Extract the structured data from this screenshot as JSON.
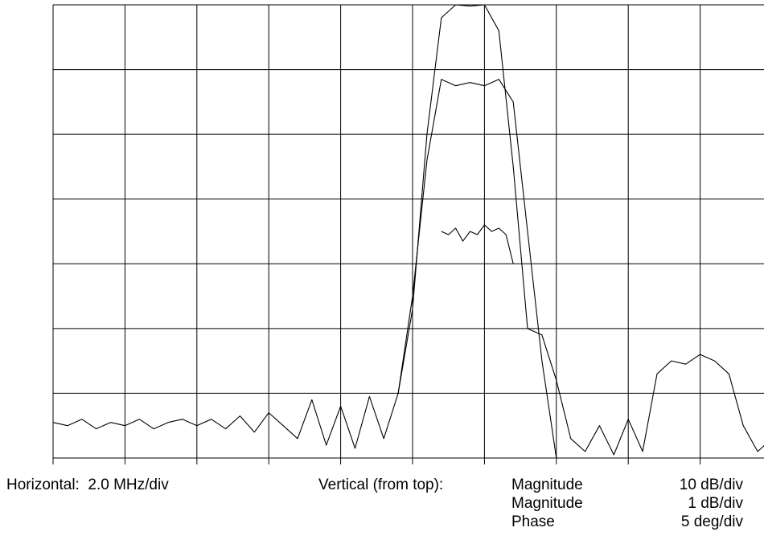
{
  "chart_data": {
    "type": "line",
    "grid": true,
    "x_divisions": 10,
    "y_divisions": 7,
    "x_scale": {
      "label": "Horizontal:",
      "value": "2.0 MHz/div"
    },
    "y_scales": {
      "label": "Vertical (from top):",
      "items": [
        {
          "name": "Magnitude",
          "scale": "10 dB/div"
        },
        {
          "name": "Magnitude",
          "scale": "1 dB/div"
        },
        {
          "name": "Phase",
          "scale": "5 deg/div"
        }
      ]
    },
    "series": [
      {
        "x": [
          0.0,
          0.2,
          0.4,
          0.6,
          0.8,
          1.0,
          1.2,
          1.4,
          1.6,
          1.8,
          2.0,
          2.2,
          2.4,
          2.6,
          2.8,
          3.0,
          3.2,
          3.4,
          3.6,
          3.8,
          4.0,
          4.2,
          4.4,
          4.6,
          4.8,
          5.0,
          5.2,
          5.4,
          5.6,
          5.8,
          6.0,
          6.2,
          6.4,
          6.6,
          6.8,
          7.0,
          7.2,
          7.4,
          7.6,
          7.8,
          8.0,
          8.2,
          8.4,
          8.6,
          8.8,
          9.0,
          9.2,
          9.4,
          9.6,
          9.8,
          10.0
        ],
        "y": [
          0.55,
          0.5,
          0.6,
          0.45,
          0.55,
          0.5,
          0.6,
          0.45,
          0.55,
          0.6,
          0.5,
          0.6,
          0.45,
          0.65,
          0.4,
          0.7,
          0.5,
          0.3,
          0.9,
          0.2,
          0.8,
          0.15,
          0.95,
          0.3,
          1.0,
          2.3,
          5.0,
          6.8,
          7.0,
          6.98,
          7.0,
          6.6,
          4.5,
          2.0,
          1.9,
          1.2,
          0.3,
          0.1,
          0.5,
          0.05,
          0.6,
          0.1,
          1.3,
          1.5,
          1.45,
          1.6,
          1.5,
          1.3,
          0.5,
          0.1,
          0.3
        ]
      },
      {
        "x": [
          4.8,
          5.0,
          5.2,
          5.4,
          5.6,
          5.8,
          6.0,
          6.2,
          6.4,
          6.6,
          6.8,
          7.0
        ],
        "y": [
          1.0,
          2.5,
          4.6,
          5.85,
          5.75,
          5.8,
          5.75,
          5.85,
          5.5,
          3.5,
          1.5,
          0.0
        ]
      },
      {
        "x": [
          5.4,
          5.5,
          5.6,
          5.7,
          5.8,
          5.9,
          6.0,
          6.1,
          6.2,
          6.3,
          6.4
        ],
        "y": [
          3.5,
          3.45,
          3.55,
          3.35,
          3.5,
          3.45,
          3.6,
          3.5,
          3.55,
          3.45,
          3.0
        ]
      }
    ]
  }
}
